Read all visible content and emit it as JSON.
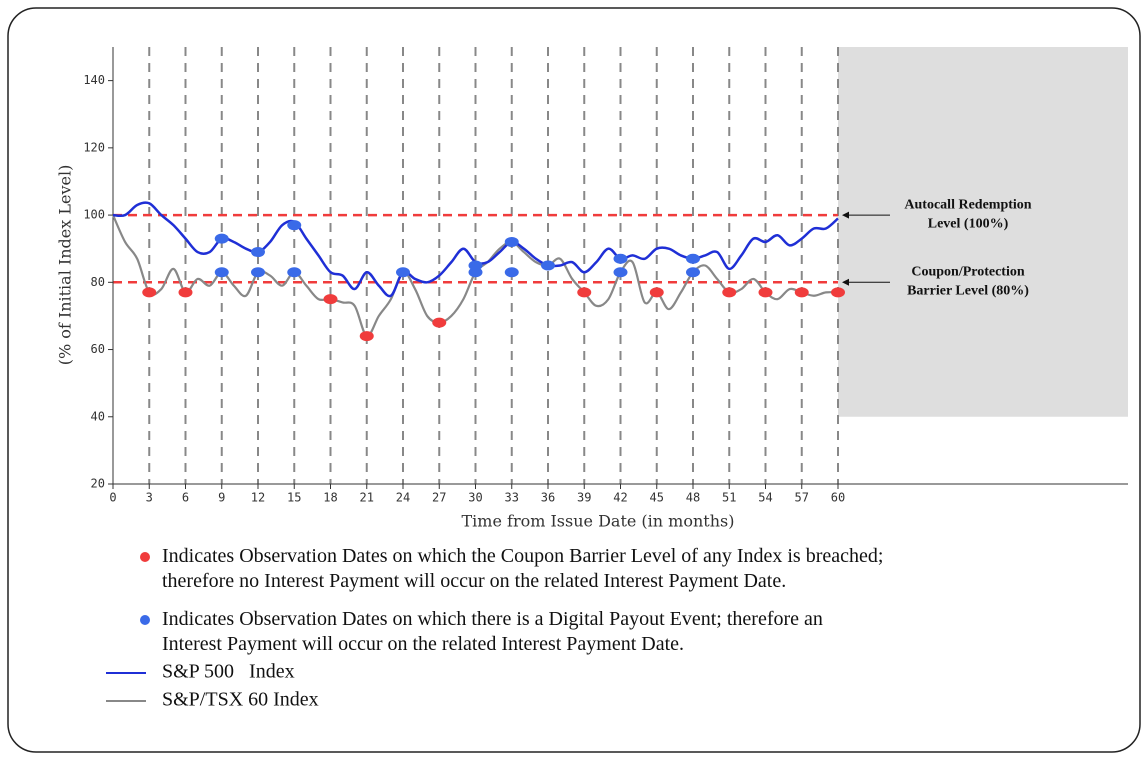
{
  "chart_data": {
    "type": "line",
    "xlabel": "Time from Issue Date (in months)",
    "ylabel": "(% of Initial Index Level)",
    "xlim": [
      0,
      84
    ],
    "ylim": [
      20,
      150
    ],
    "xticks": [
      0,
      3,
      6,
      9,
      12,
      15,
      18,
      21,
      24,
      27,
      30,
      33,
      36,
      39,
      42,
      45,
      48,
      51,
      54,
      57,
      60
    ],
    "yticks": [
      20,
      40,
      60,
      80,
      100,
      120,
      140
    ],
    "grid": true,
    "shaded_region": {
      "x": [
        60,
        84
      ],
      "y": [
        40,
        150
      ],
      "color": "#dedede"
    },
    "x": [
      0,
      1,
      2,
      3,
      4,
      5,
      6,
      7,
      8,
      9,
      10,
      11,
      12,
      13,
      14,
      15,
      16,
      17,
      18,
      19,
      20,
      21,
      22,
      23,
      24,
      25,
      26,
      27,
      28,
      29,
      30,
      31,
      32,
      33,
      34,
      35,
      36,
      37,
      38,
      39,
      40,
      41,
      42,
      43,
      44,
      45,
      46,
      47,
      48,
      49,
      50,
      51,
      52,
      53,
      54,
      55,
      56,
      57,
      58,
      59,
      60
    ],
    "series": [
      {
        "name": "S&P 500   Index",
        "color": "#1f2fd6",
        "values": [
          100,
          100,
          103,
          103.5,
          100,
          97,
          93,
          89,
          89,
          93,
          92,
          90,
          89,
          92,
          97,
          98,
          93,
          88,
          83,
          82,
          78,
          83,
          79,
          76,
          83,
          81,
          80,
          82,
          86,
          90,
          86,
          86,
          89,
          92,
          90,
          87,
          85,
          85,
          86,
          83,
          86,
          90,
          87,
          88,
          87,
          90,
          90,
          88,
          87,
          88,
          89,
          84,
          88,
          93,
          92,
          94,
          91,
          93,
          96,
          96,
          99
        ]
      },
      {
        "name": "S&P/TSX 60 Index",
        "color": "#888888",
        "values": [
          100,
          92,
          87,
          77,
          78,
          84,
          77,
          81,
          79,
          83,
          79,
          76,
          83,
          82,
          79,
          83,
          79,
          75,
          75,
          74,
          73,
          64,
          70,
          75,
          83,
          78,
          70,
          68,
          70,
          75,
          83,
          86,
          90,
          92,
          89,
          86,
          85,
          87,
          81,
          77,
          73,
          75,
          83,
          86,
          74,
          77,
          72,
          77,
          83,
          85,
          81,
          77,
          78,
          81,
          77,
          75,
          78,
          77,
          76,
          77,
          77
        ]
      }
    ],
    "markers": [
      {
        "color": "#f03c3c",
        "label": "Indicates Observation Dates on which the Coupon Barrier Level of any Index is breached; therefore no Interest Payment will occur on the related Interest Payment Date.",
        "x": [
          3,
          6,
          18,
          21,
          27,
          39,
          45,
          51,
          54,
          57,
          60
        ],
        "values": [
          77,
          77,
          75,
          64,
          68,
          77,
          77,
          77,
          77,
          77,
          77
        ]
      },
      {
        "color": "#3a6ae8",
        "label": "Indicates Observation Dates on which there is a Digital Payout Event; therefore an Interest Payment will occur on the related Interest Payment Date.",
        "x": [
          9,
          9,
          12,
          12,
          15,
          15,
          24,
          30,
          30,
          33,
          33,
          36,
          42,
          42,
          48,
          48
        ],
        "values": [
          93,
          83,
          89,
          83,
          97,
          83,
          83,
          85,
          83,
          92,
          83,
          85,
          87,
          83,
          87,
          83
        ]
      }
    ],
    "levels": [
      {
        "value": 100,
        "color": "#f03c3c",
        "annotation": [
          "Autocall Redemption",
          "Level (100%)"
        ],
        "x": 60
      },
      {
        "value": 80,
        "color": "#f03c3c",
        "annotation": [
          "Coupon/Protection",
          "Barrier Level (80%)"
        ],
        "x": 60
      }
    ]
  }
}
